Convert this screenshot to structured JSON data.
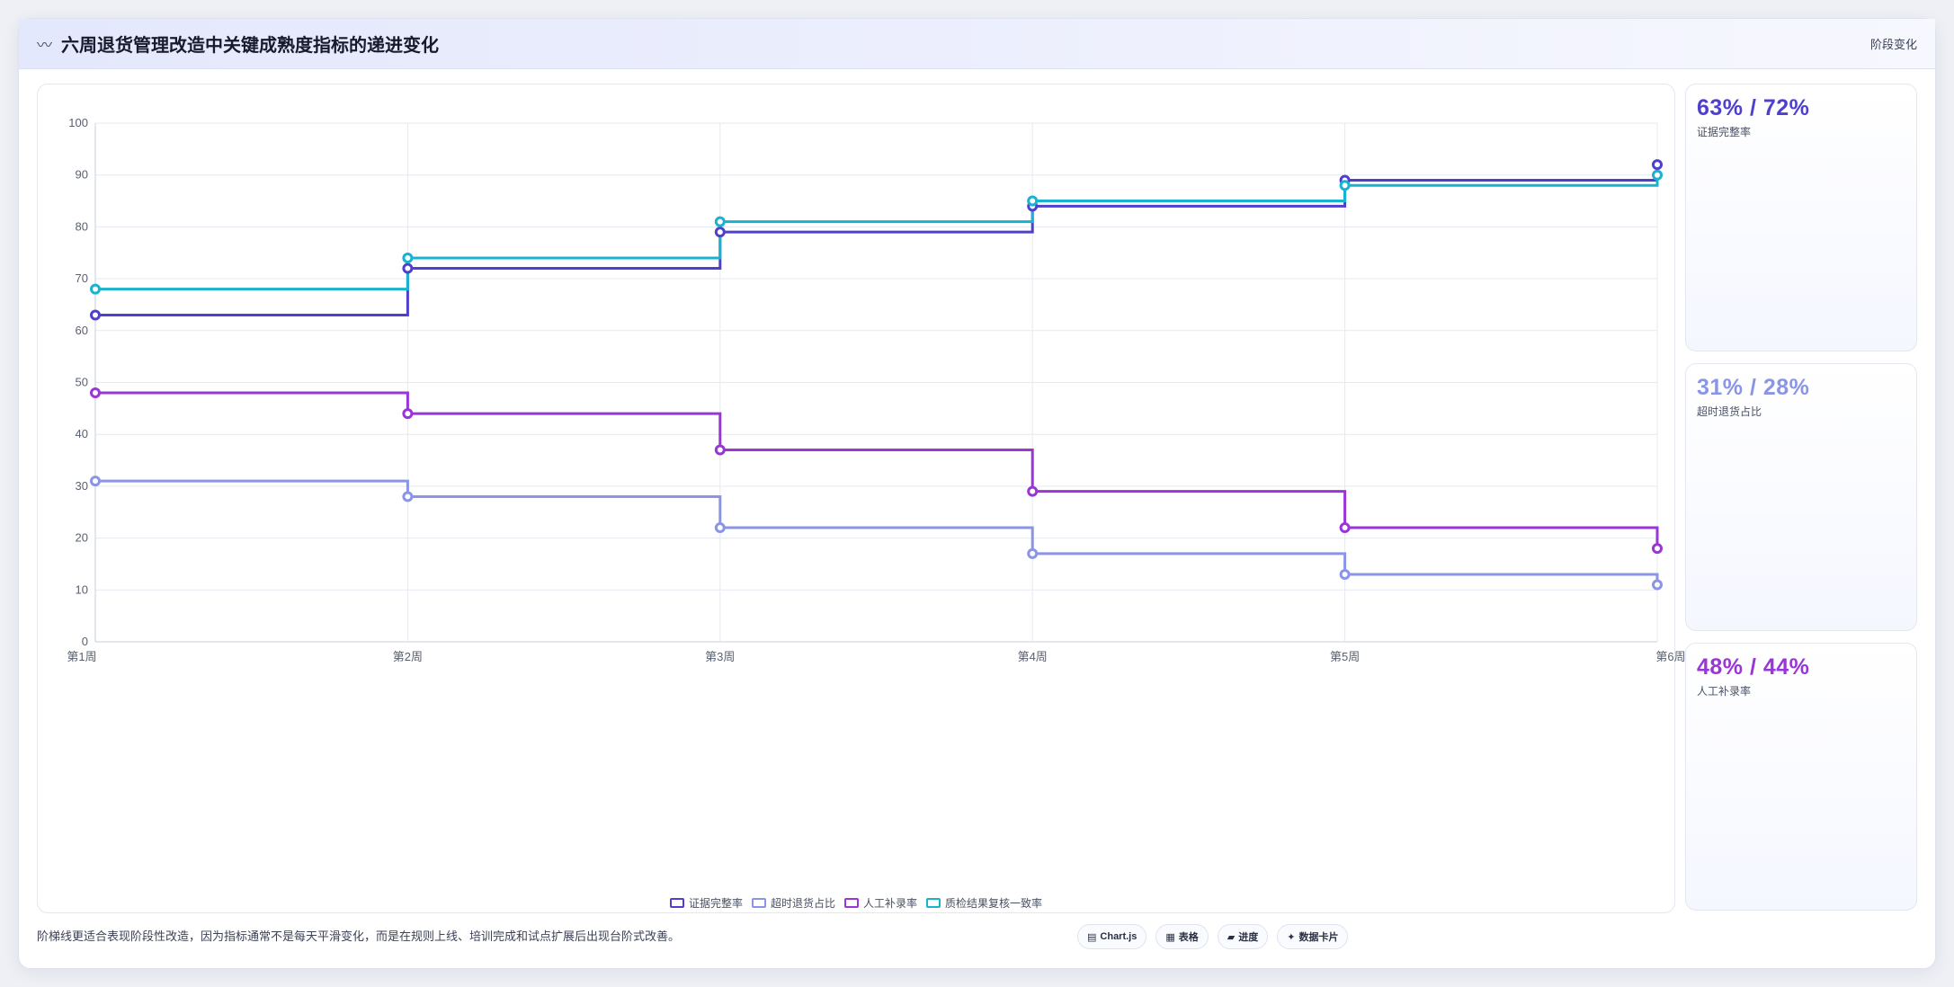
{
  "header": {
    "icon": "chart-line-icon",
    "icon_glyph": "〰",
    "title": "六周退货管理改造中关键成熟度指标的递进变化",
    "tag": "阶段变化"
  },
  "chart_data": {
    "type": "line",
    "step": true,
    "categories": [
      "第1周",
      "第2周",
      "第3周",
      "第4周",
      "第5周",
      "第6周"
    ],
    "ylim": [
      0,
      100
    ],
    "yticks": [
      "0",
      "10",
      "20",
      "30",
      "40",
      "50",
      "60",
      "70",
      "80",
      "90",
      "100"
    ],
    "grid": true,
    "legend_position": "bottom",
    "series": [
      {
        "name": "证据完整率",
        "color": "#4f3fcf",
        "values": [
          63,
          72,
          79,
          84,
          89,
          92
        ]
      },
      {
        "name": "超时退货占比",
        "color": "#8a95e8",
        "values": [
          31,
          28,
          22,
          17,
          13,
          11
        ]
      },
      {
        "name": "人工补录率",
        "color": "#9a35d8",
        "values": [
          48,
          44,
          37,
          29,
          22,
          18
        ]
      },
      {
        "name": "质检结果复核一致率",
        "color": "#19b3cf",
        "values": [
          68,
          74,
          81,
          85,
          88,
          90
        ]
      }
    ]
  },
  "side_cards": [
    {
      "value": "63% / 72%",
      "label": "证据完整率",
      "color": "#4f3fcf"
    },
    {
      "value": "31% / 28%",
      "label": "超时退货占比",
      "color": "#8a95e8"
    },
    {
      "value": "48% / 44%",
      "label": "人工补录率",
      "color": "#9a35d8"
    }
  ],
  "footer": {
    "note": "阶梯线更适合表现阶段性改造，因为指标通常不是每天平滑变化，而是在规则上线、培训完成和试点扩展后出现台阶式改善。",
    "pills": [
      {
        "icon": "chart-icon",
        "glyph": "▤",
        "label": "Chart.js"
      },
      {
        "icon": "table-icon",
        "glyph": "▦",
        "label": "表格"
      },
      {
        "icon": "progress-icon",
        "glyph": "▰",
        "label": "进度"
      },
      {
        "icon": "sparkle-icon",
        "glyph": "✦",
        "label": "数据卡片"
      }
    ]
  }
}
